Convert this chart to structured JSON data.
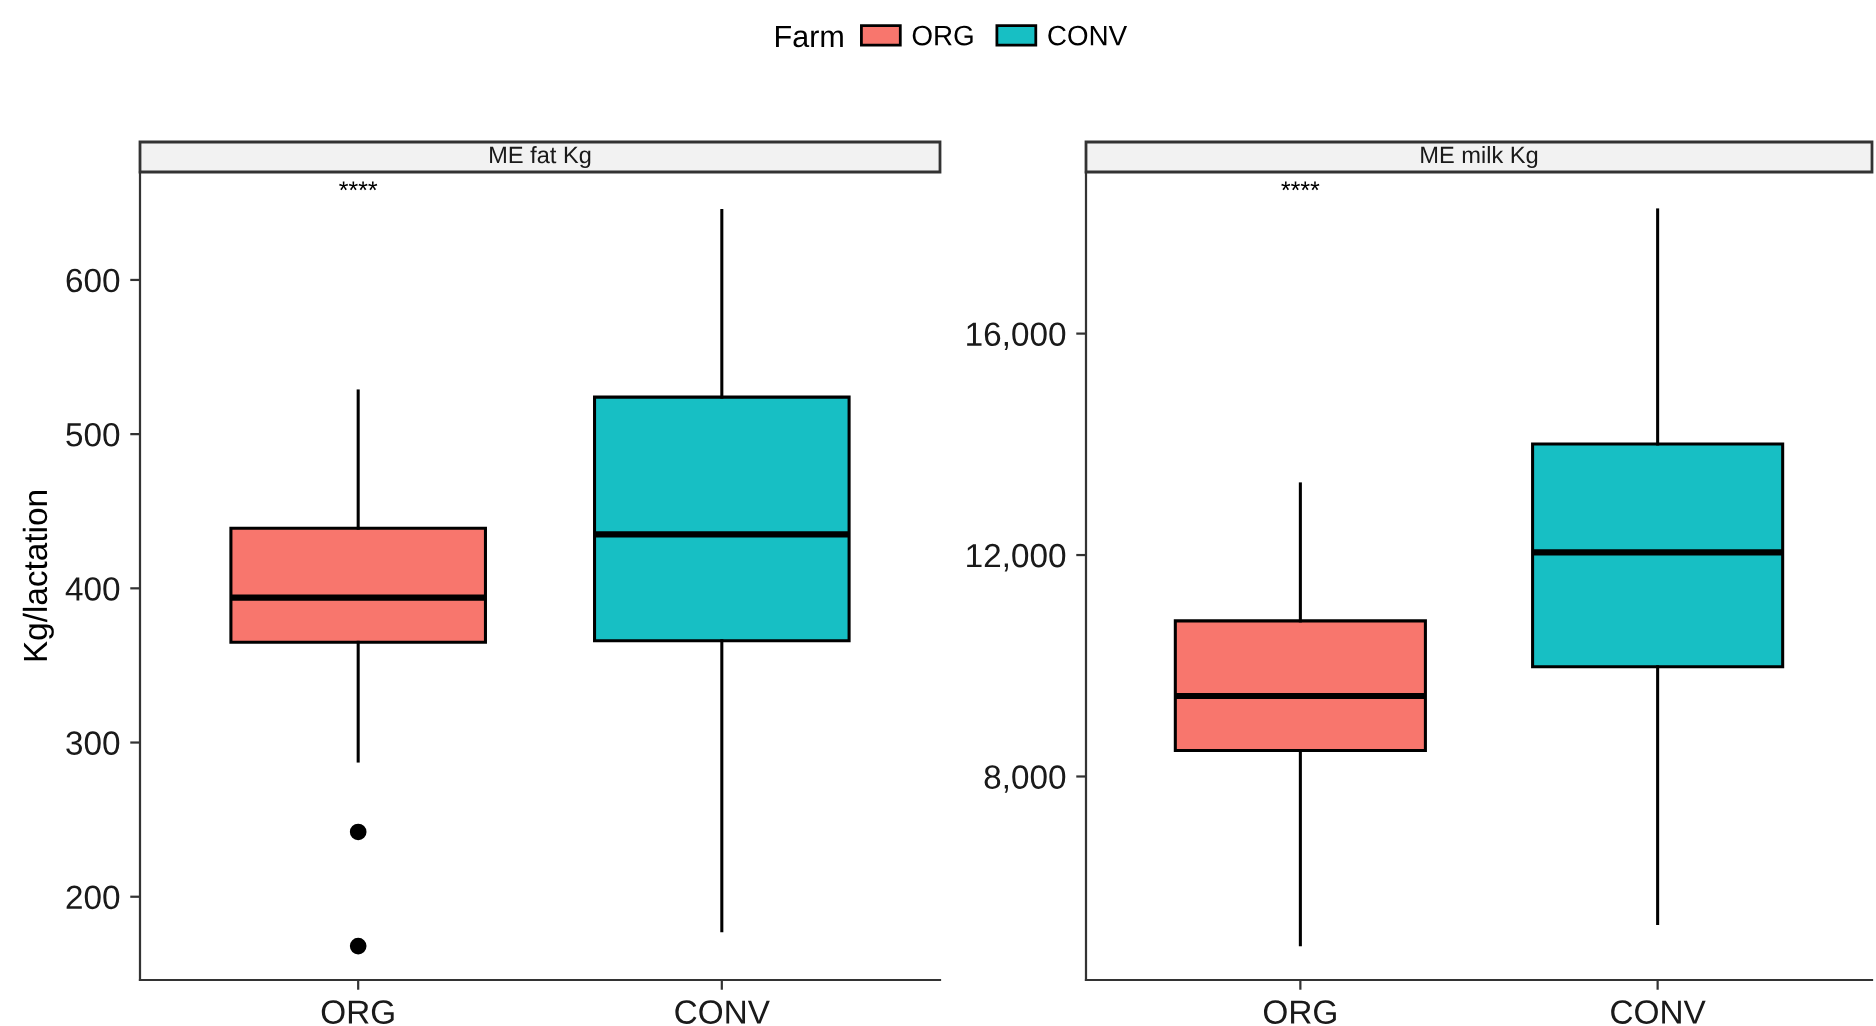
{
  "chart_data": [
    {
      "type": "box",
      "title": "ME fat Kg",
      "ylabel": "Kg/lactation",
      "legend_title": "Farm",
      "legend": "top",
      "grid": false,
      "categories": [
        "ORG",
        "CONV"
      ],
      "series": [
        {
          "name": "ORG",
          "color": "#f8766d",
          "boxes": [
            {
              "low": 288,
              "q1": 365,
              "median": 394,
              "q3": 439,
              "high": 528,
              "outliers": [
                242,
                168
              ]
            },
            null
          ]
        },
        {
          "name": "CONV",
          "color": "#17bfc4",
          "boxes": [
            null,
            {
              "low": 178,
              "q1": 366,
              "median": 435,
              "q3": 524,
              "high": 645
            }
          ]
        }
      ],
      "ylim": [
        146,
        670
      ],
      "yticks": [
        200,
        300,
        400,
        500,
        600
      ],
      "annotations": [
        "****"
      ]
    },
    {
      "type": "box",
      "title": "ME milk Kg",
      "grid": false,
      "categories": [
        "ORG",
        "CONV"
      ],
      "series": [
        {
          "color": "#f8766d",
          "boxes": [
            {
              "low": 4961,
              "q1": 8468,
              "median": 9453,
              "q3": 10811,
              "high": 13285
            },
            null
          ]
        },
        {
          "color": "#17bfc4",
          "boxes": [
            null,
            {
              "low": 5346,
              "q1": 9982,
              "median": 12048,
              "q3": 14006,
              "high": 18234
            }
          ]
        }
      ],
      "ylim": [
        4324,
        18919
      ],
      "yticks": [
        {
          "value": 8000,
          "label": "8,000"
        },
        {
          "value": 12000,
          "label": "12,000"
        },
        {
          "value": 16000,
          "label": "16,000"
        }
      ],
      "annotations": [
        "****"
      ]
    }
  ]
}
